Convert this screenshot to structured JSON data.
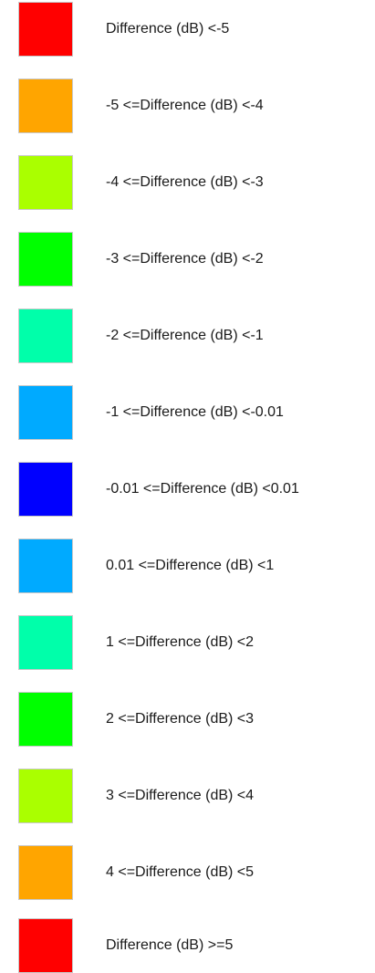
{
  "legend": {
    "items": [
      {
        "label": "Difference (dB) <-5",
        "color": "#ff0000"
      },
      {
        "label": "-5 <=Difference (dB) <-4",
        "color": "#ffa500"
      },
      {
        "label": "-4 <=Difference (dB) <-3",
        "color": "#aaff00"
      },
      {
        "label": "-3 <=Difference (dB) <-2",
        "color": "#00ff00"
      },
      {
        "label": "-2 <=Difference (dB) <-1",
        "color": "#00ffaa"
      },
      {
        "label": "-1 <=Difference (dB) <-0.01",
        "color": "#00aaff"
      },
      {
        "label": "-0.01 <=Difference (dB) <0.01",
        "color": "#0000ff"
      },
      {
        "label": "0.01 <=Difference (dB) <1",
        "color": "#00aaff"
      },
      {
        "label": "1 <=Difference (dB) <2",
        "color": "#00ffaa"
      },
      {
        "label": "2 <=Difference (dB) <3",
        "color": "#00ff00"
      },
      {
        "label": "3 <=Difference (dB) <4",
        "color": "#aaff00"
      },
      {
        "label": "4 <=Difference (dB) <5",
        "color": "#ffa500"
      },
      {
        "label": "Difference (dB) >=5",
        "color": "#ff0000"
      }
    ]
  }
}
